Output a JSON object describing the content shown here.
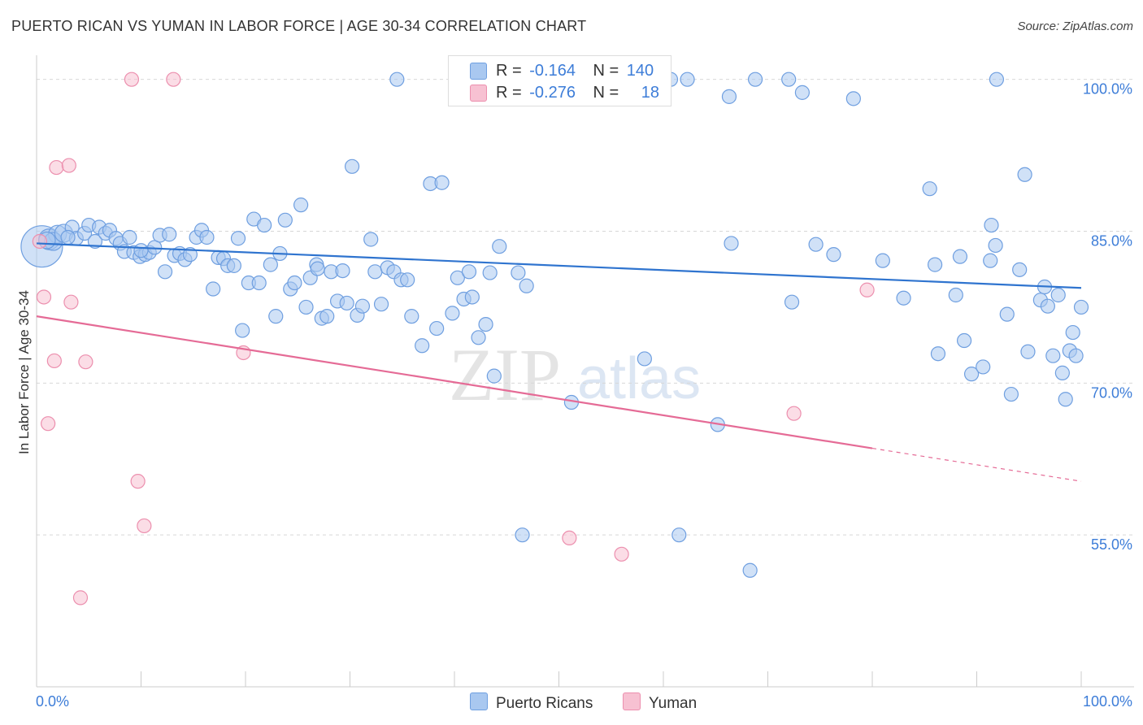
{
  "header": {
    "title": "PUERTO RICAN VS YUMAN IN LABOR FORCE | AGE 30-34 CORRELATION CHART",
    "source": "Source: ZipAtlas.com"
  },
  "watermark": {
    "zip": "ZIP",
    "atlas": "atlas"
  },
  "legend_top": {
    "rows": [
      {
        "r_label": "R =",
        "r_value": "-0.164",
        "n_label": "N =",
        "n_value": "140"
      },
      {
        "r_label": "R =",
        "r_value": "-0.276",
        "n_label": "N =",
        "n_value": "18"
      }
    ]
  },
  "legend_bottom": {
    "items": [
      "Puerto Ricans",
      "Yuman"
    ]
  },
  "colors": {
    "blue_fill": "#a9c8f0",
    "blue_stroke": "#6f9fe0",
    "blue_line": "#2f74cf",
    "pink_fill": "#f7c1d2",
    "pink_stroke": "#ec8fae",
    "pink_line": "#e56b96",
    "axis_text": "#3d7dd8",
    "grid": "#d7d7d7"
  },
  "chart_data": {
    "type": "scatter",
    "title": "PUERTO RICAN VS YUMAN IN LABOR FORCE | AGE 30-34 CORRELATION CHART",
    "ylabel": "In Labor Force | Age 30-34",
    "xlabel": "",
    "xlim": [
      0,
      100
    ],
    "ylim": [
      40,
      101.5
    ],
    "x_tick_labels": [
      "0.0%",
      "100.0%"
    ],
    "y_ticks": [
      {
        "value": 100,
        "label": "100.0%"
      },
      {
        "value": 85,
        "label": "85.0%"
      },
      {
        "value": 70,
        "label": "70.0%"
      },
      {
        "value": 55,
        "label": "55.0%"
      }
    ],
    "grid": true,
    "legend_position": "top-center",
    "series": [
      {
        "name": "Puerto Ricans",
        "color": "#6f9fe0",
        "r": -0.164,
        "n": 140,
        "trend": {
          "x0": 0,
          "y0": 83.8,
          "x1": 100,
          "y1": 79.4,
          "dashed_from": null
        },
        "points": [
          [
            0.5,
            83.5,
            3
          ],
          [
            1.2,
            84.2,
            1.5
          ],
          [
            2.0,
            84.7,
            1.3
          ],
          [
            1.6,
            84.0,
            1.3
          ],
          [
            2.6,
            84.8,
            1.3
          ],
          [
            3.4,
            85.4,
            1
          ],
          [
            3.8,
            84.3,
            1
          ],
          [
            4.6,
            84.8,
            1
          ],
          [
            5.0,
            85.6,
            1
          ],
          [
            5.6,
            84.0,
            1
          ],
          [
            6.0,
            85.4,
            1
          ],
          [
            6.6,
            84.8,
            1
          ],
          [
            7.0,
            85.1,
            1
          ],
          [
            7.6,
            84.3,
            1
          ],
          [
            8.0,
            83.8,
            1
          ],
          [
            8.4,
            83.0,
            1
          ],
          [
            8.9,
            84.4,
            1
          ],
          [
            9.3,
            82.9,
            1
          ],
          [
            9.9,
            82.5,
            1
          ],
          [
            10.4,
            82.7,
            1
          ],
          [
            10.8,
            82.9,
            1
          ],
          [
            11.3,
            83.4,
            1
          ],
          [
            11.8,
            84.6,
            1
          ],
          [
            12.3,
            81.0,
            1
          ],
          [
            12.7,
            84.7,
            1
          ],
          [
            13.2,
            82.6,
            1
          ],
          [
            13.7,
            82.8,
            1
          ],
          [
            14.2,
            82.2,
            1
          ],
          [
            14.7,
            82.7,
            1
          ],
          [
            15.3,
            84.4,
            1
          ],
          [
            15.8,
            85.1,
            1
          ],
          [
            16.3,
            84.4,
            1
          ],
          [
            16.9,
            79.3,
            1
          ],
          [
            17.4,
            82.4,
            1
          ],
          [
            17.9,
            82.3,
            1
          ],
          [
            18.3,
            81.6,
            1
          ],
          [
            18.9,
            81.6,
            1
          ],
          [
            19.3,
            84.3,
            1
          ],
          [
            19.7,
            75.2,
            1
          ],
          [
            20.3,
            79.9,
            1
          ],
          [
            20.8,
            86.2,
            1
          ],
          [
            21.3,
            79.9,
            1
          ],
          [
            21.8,
            85.6,
            1
          ],
          [
            22.4,
            81.7,
            1
          ],
          [
            22.9,
            76.6,
            1
          ],
          [
            23.3,
            82.8,
            1
          ],
          [
            23.8,
            86.1,
            1
          ],
          [
            24.3,
            79.3,
            1
          ],
          [
            24.7,
            79.9,
            1
          ],
          [
            25.3,
            87.6,
            1
          ],
          [
            25.8,
            77.5,
            1
          ],
          [
            26.2,
            80.4,
            1
          ],
          [
            26.8,
            81.7,
            1
          ],
          [
            27.3,
            76.4,
            1
          ],
          [
            27.8,
            76.6,
            1
          ],
          [
            28.2,
            81.0,
            1
          ],
          [
            28.8,
            78.1,
            1
          ],
          [
            29.3,
            81.1,
            1
          ],
          [
            29.7,
            77.9,
            1
          ],
          [
            30.2,
            91.4,
            1
          ],
          [
            30.7,
            76.7,
            1
          ],
          [
            31.2,
            77.6,
            1
          ],
          [
            32.0,
            84.2,
            1
          ],
          [
            32.4,
            81.0,
            1
          ],
          [
            33.0,
            77.8,
            1
          ],
          [
            33.6,
            81.4,
            1
          ],
          [
            34.2,
            81.0,
            1
          ],
          [
            34.5,
            100.0,
            1
          ],
          [
            34.9,
            80.2,
            1
          ],
          [
            35.5,
            80.2,
            1
          ],
          [
            35.9,
            76.6,
            1
          ],
          [
            36.9,
            73.7,
            1
          ],
          [
            37.7,
            89.7,
            1
          ],
          [
            38.3,
            75.4,
            1
          ],
          [
            38.8,
            89.8,
            1
          ],
          [
            39.8,
            76.9,
            1
          ],
          [
            40.3,
            80.4,
            1
          ],
          [
            40.9,
            78.3,
            1
          ],
          [
            41.4,
            81.0,
            1
          ],
          [
            41.7,
            78.5,
            1
          ],
          [
            42.3,
            74.5,
            1
          ],
          [
            43.0,
            75.8,
            1
          ],
          [
            43.4,
            80.9,
            1
          ],
          [
            43.8,
            70.7,
            1
          ],
          [
            44.3,
            83.5,
            1
          ],
          [
            46.1,
            80.9,
            1
          ],
          [
            46.5,
            55.0,
            1
          ],
          [
            46.9,
            79.6,
            1
          ],
          [
            48.3,
            100.0,
            1
          ],
          [
            51.2,
            68.1,
            1
          ],
          [
            55.5,
            100.0,
            1
          ],
          [
            58.2,
            72.4,
            1
          ],
          [
            60.7,
            100.0,
            1
          ],
          [
            61.5,
            55.0,
            1
          ],
          [
            62.3,
            100.0,
            1
          ],
          [
            65.2,
            65.9,
            1
          ],
          [
            66.3,
            98.3,
            1
          ],
          [
            66.5,
            83.8,
            1
          ],
          [
            68.3,
            51.5,
            1
          ],
          [
            68.8,
            100.0,
            1
          ],
          [
            72.0,
            100.0,
            1
          ],
          [
            72.3,
            78.0,
            1
          ],
          [
            73.3,
            98.7,
            1
          ],
          [
            74.6,
            83.7,
            1
          ],
          [
            76.3,
            82.7,
            1
          ],
          [
            78.2,
            98.1,
            1
          ],
          [
            81.0,
            82.1,
            1
          ],
          [
            83.0,
            78.4,
            1
          ],
          [
            85.5,
            89.2,
            1
          ],
          [
            86.0,
            81.7,
            1
          ],
          [
            86.3,
            72.9,
            1
          ],
          [
            88.0,
            78.7,
            1
          ],
          [
            88.4,
            82.5,
            1
          ],
          [
            88.8,
            74.2,
            1
          ],
          [
            89.5,
            70.9,
            1
          ],
          [
            90.6,
            71.6,
            1
          ],
          [
            91.3,
            82.1,
            1
          ],
          [
            91.4,
            85.6,
            1
          ],
          [
            91.8,
            83.6,
            1
          ],
          [
            91.9,
            100.0,
            1
          ],
          [
            92.9,
            76.8,
            1
          ],
          [
            93.3,
            68.9,
            1
          ],
          [
            94.1,
            81.2,
            1
          ],
          [
            94.6,
            90.6,
            1
          ],
          [
            94.9,
            73.1,
            1
          ],
          [
            96.1,
            78.2,
            1
          ],
          [
            96.5,
            79.5,
            1
          ],
          [
            96.8,
            77.6,
            1
          ],
          [
            97.3,
            72.7,
            1
          ],
          [
            97.8,
            78.7,
            1
          ],
          [
            98.2,
            71.0,
            1
          ],
          [
            98.5,
            68.4,
            1
          ],
          [
            98.9,
            73.2,
            1
          ],
          [
            99.2,
            75.0,
            1
          ],
          [
            99.5,
            72.7,
            1
          ],
          [
            100.0,
            77.5,
            1
          ],
          [
            1.0,
            84.1,
            1.2
          ],
          [
            3.0,
            84.4,
            1
          ],
          [
            10.0,
            83.1,
            1
          ],
          [
            26.9,
            81.3,
            1
          ]
        ]
      },
      {
        "name": "Yuman",
        "color": "#ec8fae",
        "r": -0.276,
        "n": 18,
        "trend": {
          "x0": 0,
          "y0": 76.6,
          "x1": 100,
          "y1": 60.3,
          "dashed_from": 80
        },
        "points": [
          [
            0.3,
            84.0,
            1
          ],
          [
            0.7,
            78.5,
            1
          ],
          [
            1.1,
            66.0,
            1
          ],
          [
            1.7,
            72.2,
            1
          ],
          [
            1.9,
            91.3,
            1
          ],
          [
            3.1,
            91.5,
            1
          ],
          [
            3.3,
            78.0,
            1
          ],
          [
            4.2,
            48.8,
            1
          ],
          [
            4.7,
            72.1,
            1
          ],
          [
            9.1,
            100.0,
            1
          ],
          [
            9.7,
            60.3,
            1
          ],
          [
            10.3,
            55.9,
            1
          ],
          [
            13.1,
            100.0,
            1
          ],
          [
            19.8,
            73.0,
            1
          ],
          [
            51.0,
            54.7,
            1
          ],
          [
            56.0,
            53.1,
            1
          ],
          [
            72.5,
            67.0,
            1
          ],
          [
            79.5,
            79.2,
            1
          ]
        ]
      }
    ]
  }
}
